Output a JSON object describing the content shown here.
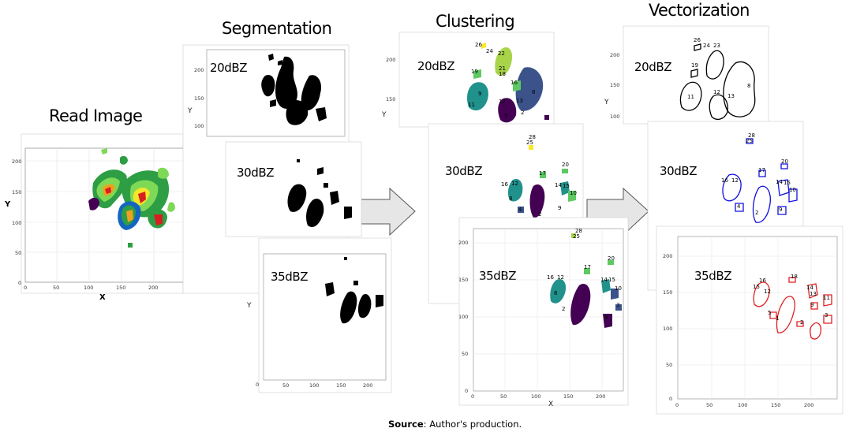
{
  "titles": {
    "read_image": "Read Image",
    "segmentation": "Segmentation",
    "clustering": "Clustering",
    "vectorization": "Vectorization"
  },
  "levels": [
    "20dBZ",
    "30dBZ",
    "35dBZ"
  ],
  "axis": {
    "x": "X",
    "y": "Y"
  },
  "ticks": [
    "0",
    "50",
    "100",
    "150",
    "200"
  ],
  "source": {
    "label": "Source",
    "text": ": Author's production."
  },
  "cluster_labels": {
    "level_20": [
      "26",
      "24",
      "22",
      "21",
      "18",
      "19",
      "16",
      "9",
      "12",
      "11",
      "13",
      "8",
      "5",
      "2"
    ],
    "level_30": [
      "28",
      "25",
      "17",
      "20",
      "16",
      "12",
      "14",
      "15",
      "10",
      "8",
      "4",
      "2",
      "9"
    ],
    "level_35": [
      "28",
      "25",
      "17",
      "20",
      "16",
      "12",
      "14",
      "15",
      "10",
      "8",
      "2",
      "9",
      "3"
    ]
  },
  "vector_labels": {
    "level_20": [
      "26",
      "24",
      "23",
      "19",
      "8",
      "11",
      "12",
      "13"
    ],
    "level_30": [
      "28",
      "25",
      "17",
      "20",
      "16",
      "12",
      "14",
      "15",
      "10",
      "4",
      "2",
      "9"
    ],
    "level_35": [
      "16",
      "18",
      "15",
      "12",
      "14",
      "13",
      "11",
      "9",
      "5",
      "3",
      "1",
      "2"
    ]
  },
  "colors": {
    "segmentation": "#000000",
    "vector_20": "#000000",
    "vector_30": "#1010e0",
    "vector_35": "#e02020",
    "clusters": [
      "#440154",
      "#3b528b",
      "#21918c",
      "#5ec962",
      "#a8d44a",
      "#fde725"
    ],
    "radar": [
      "#1565c0",
      "#2e9e44",
      "#7ed957",
      "#f5e62a",
      "#f0a020",
      "#d62020"
    ]
  }
}
